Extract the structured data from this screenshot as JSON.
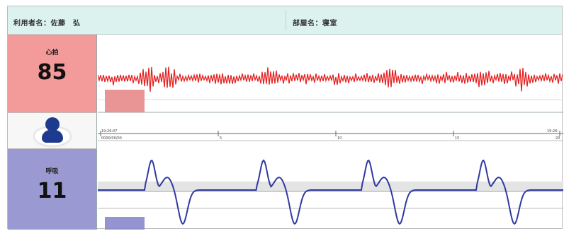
{
  "header": {
    "user_label": "利用者名：佐藤　弘",
    "room_label": "部屋名：寝室"
  },
  "heart_rate": {
    "label": "心拍",
    "value": "85",
    "color": "#e52222",
    "panel_color": "#f39a9a",
    "level": 0.6
  },
  "respiration": {
    "label": "呼吸",
    "value": "11",
    "color": "#2f3aa0",
    "panel_color": "#9a99d2",
    "level": 0.55
  },
  "avatar": {
    "icon": "person-icon",
    "color": "#1d3a8f"
  },
  "time_axis": {
    "start_top": "19:26:07",
    "start_bottom": "0000/00/00",
    "ticks": [
      "5",
      "10",
      "15",
      "20"
    ],
    "end_top": "19:26:"
  }
}
